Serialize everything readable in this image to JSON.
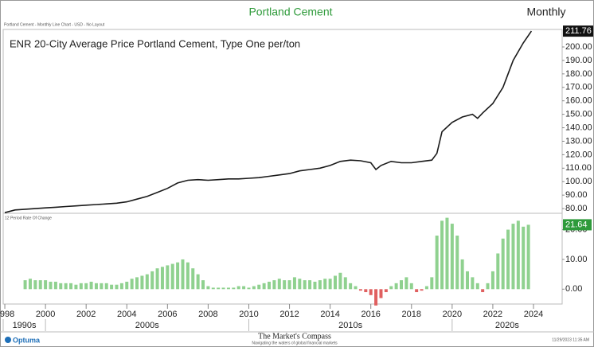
{
  "header": {
    "title": "Portland Cement",
    "period": "Monthly",
    "layout_note": "Portland Cement - Monthly Line Chart - USD - No Layout"
  },
  "chart_data": [
    {
      "type": "line",
      "title": "ENR 20-City Average Price Portland Cement, Type One per/ton",
      "color": "#1a1a1a",
      "xlim": [
        1997.92,
        2025.41
      ],
      "ylim": [
        76.5,
        213
      ],
      "yticks": [
        {
          "value": 80,
          "label": "80.00"
        },
        {
          "value": 90,
          "label": "90.00"
        },
        {
          "value": 100,
          "label": "100.00"
        },
        {
          "value": 110,
          "label": "110.00"
        },
        {
          "value": 120,
          "label": "120.00"
        },
        {
          "value": 130,
          "label": "130.00"
        },
        {
          "value": 140,
          "label": "140.00"
        },
        {
          "value": 150,
          "label": "150.00"
        },
        {
          "value": 160,
          "label": "160.00"
        },
        {
          "value": 170,
          "label": "170.00"
        },
        {
          "value": 180,
          "label": "180.00"
        },
        {
          "value": 190,
          "label": "190.00"
        },
        {
          "value": 200,
          "label": "200.00"
        }
      ],
      "x": [
        1998,
        1998.5,
        1999,
        1999.5,
        2000,
        2000.5,
        2001,
        2001.5,
        2002,
        2002.5,
        2003,
        2003.5,
        2004,
        2004.5,
        2005,
        2005.5,
        2006,
        2006.5,
        2007,
        2007.5,
        2008,
        2008.5,
        2009,
        2009.5,
        2010,
        2010.5,
        2011,
        2011.5,
        2012,
        2012.5,
        2013,
        2013.5,
        2014,
        2014.5,
        2015,
        2015.5,
        2016,
        2016.25,
        2016.5,
        2017,
        2017.5,
        2018,
        2018.5,
        2019,
        2019.25,
        2019.5,
        2020,
        2020.5,
        2021,
        2021.25,
        2021.5,
        2022,
        2022.5,
        2023,
        2023.5,
        2023.9
      ],
      "values": [
        77,
        79,
        79.5,
        80,
        80.5,
        81,
        81.5,
        82,
        82.5,
        83,
        83.5,
        84,
        85,
        87,
        89,
        92,
        95,
        99,
        101,
        101.5,
        101,
        101.5,
        102,
        102,
        102.5,
        103,
        104,
        105,
        106,
        108,
        109,
        110,
        112,
        115,
        116,
        115.5,
        114,
        109,
        112,
        115,
        114,
        114,
        115,
        116,
        121,
        137,
        144,
        148,
        150,
        147,
        151,
        158,
        170,
        190,
        203,
        211.76
      ]
    },
    {
      "type": "bar",
      "title": "12 Period Rate Of Change",
      "color": "#8fd18f",
      "negative_color": "#e06060",
      "xlim": [
        1997.92,
        2025.41
      ],
      "ylim": [
        -5,
        25.5
      ],
      "yticks": [
        {
          "value": 0,
          "label": "0.00"
        },
        {
          "value": 10,
          "label": "10.00"
        },
        {
          "value": 20,
          "label": "20.00"
        }
      ],
      "xticks": [
        1998,
        2000,
        2002,
        2004,
        2006,
        2008,
        2010,
        2012,
        2014,
        2016,
        2018,
        2020,
        2022,
        2024
      ],
      "decades": [
        {
          "value": 1990,
          "label": "1990s"
        },
        {
          "value": 2000,
          "label": "2000s"
        },
        {
          "value": 2010,
          "label": "2010s"
        },
        {
          "value": 2020,
          "label": "2020s"
        }
      ],
      "x": [
        1999,
        1999.25,
        1999.5,
        1999.75,
        2000,
        2000.25,
        2000.5,
        2000.75,
        2001,
        2001.25,
        2001.5,
        2001.75,
        2002,
        2002.25,
        2002.5,
        2002.75,
        2003,
        2003.25,
        2003.5,
        2003.75,
        2004,
        2004.25,
        2004.5,
        2004.75,
        2005,
        2005.25,
        2005.5,
        2005.75,
        2006,
        2006.25,
        2006.5,
        2006.75,
        2007,
        2007.25,
        2007.5,
        2007.75,
        2008,
        2008.25,
        2008.5,
        2008.75,
        2009,
        2009.25,
        2009.5,
        2009.75,
        2010,
        2010.25,
        2010.5,
        2010.75,
        2011,
        2011.25,
        2011.5,
        2011.75,
        2012,
        2012.25,
        2012.5,
        2012.75,
        2013,
        2013.25,
        2013.5,
        2013.75,
        2014,
        2014.25,
        2014.5,
        2014.75,
        2015,
        2015.25,
        2015.5,
        2015.75,
        2016,
        2016.25,
        2016.5,
        2016.75,
        2017,
        2017.25,
        2017.5,
        2017.75,
        2018,
        2018.25,
        2018.5,
        2018.75,
        2019,
        2019.25,
        2019.5,
        2019.75,
        2020,
        2020.25,
        2020.5,
        2020.75,
        2021,
        2021.25,
        2021.5,
        2021.75,
        2022,
        2022.25,
        2022.5,
        2022.75,
        2023,
        2023.25,
        2023.5,
        2023.75
      ],
      "values": [
        3,
        3.5,
        3,
        3,
        3,
        2.5,
        2.5,
        2,
        2,
        2,
        1.5,
        2,
        2,
        2.5,
        2,
        2,
        2,
        1.5,
        1.5,
        2,
        2.5,
        3.5,
        4,
        4.5,
        5,
        6,
        7,
        7.5,
        8,
        8.5,
        9,
        10,
        9,
        7,
        5,
        3,
        1,
        0.5,
        0.5,
        0.5,
        0.5,
        0.5,
        1,
        1,
        0.5,
        1,
        1.5,
        2,
        2.5,
        3,
        3.5,
        3,
        3,
        4,
        3.5,
        3,
        3,
        2.5,
        3,
        3.5,
        3.5,
        4.5,
        5.5,
        4,
        2,
        1,
        -0.5,
        -1,
        -2,
        -5.5,
        -3,
        -1,
        1,
        2,
        3,
        4,
        2,
        -1,
        -0.5,
        1,
        4,
        18,
        23,
        24,
        22,
        18,
        10,
        6,
        4,
        2,
        -1,
        2,
        6,
        12,
        17,
        20,
        22,
        23,
        21,
        21.64
      ]
    }
  ],
  "footer": {
    "logo": "Optuma",
    "brand": "The Market's Compass",
    "tagline": "Navigating the waters of global financial markets",
    "timestamp": "11/29/2023 11:35 AM"
  }
}
